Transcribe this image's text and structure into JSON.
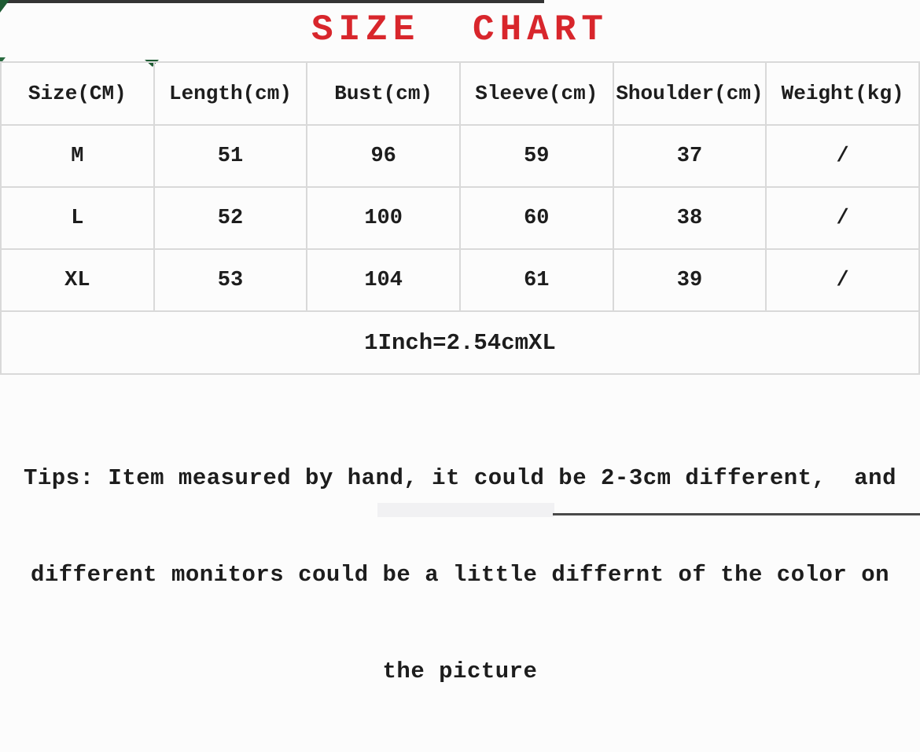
{
  "page": {
    "title": "SIZE CHART"
  },
  "colors": {
    "title_red": "#d8262c",
    "text": "#1d1d1d",
    "table_border": "#d9d9d9",
    "background": "#fcfcfc",
    "leaf_green": "#1e5b33"
  },
  "table": {
    "headers": [
      "Size(CM)",
      "Length(cm)",
      "Bust(cm)",
      "Sleeve(cm)",
      "Shoulder(cm)",
      "Weight(kg)"
    ],
    "rows": [
      {
        "cells": [
          "M",
          "51",
          "96",
          "59",
          "37",
          "/"
        ]
      },
      {
        "cells": [
          "L",
          "52",
          "100",
          "60",
          "38",
          "/"
        ]
      },
      {
        "cells": [
          "XL",
          "53",
          "104",
          "61",
          "39",
          "/"
        ]
      }
    ],
    "note": "1Inch=2.54cmXL"
  },
  "tips": {
    "line1": "Tips: Item measured by hand, it could be 2-3cm different,  and",
    "line2": "different monitors could be a little differnt of the color on",
    "line3": "the picture"
  }
}
